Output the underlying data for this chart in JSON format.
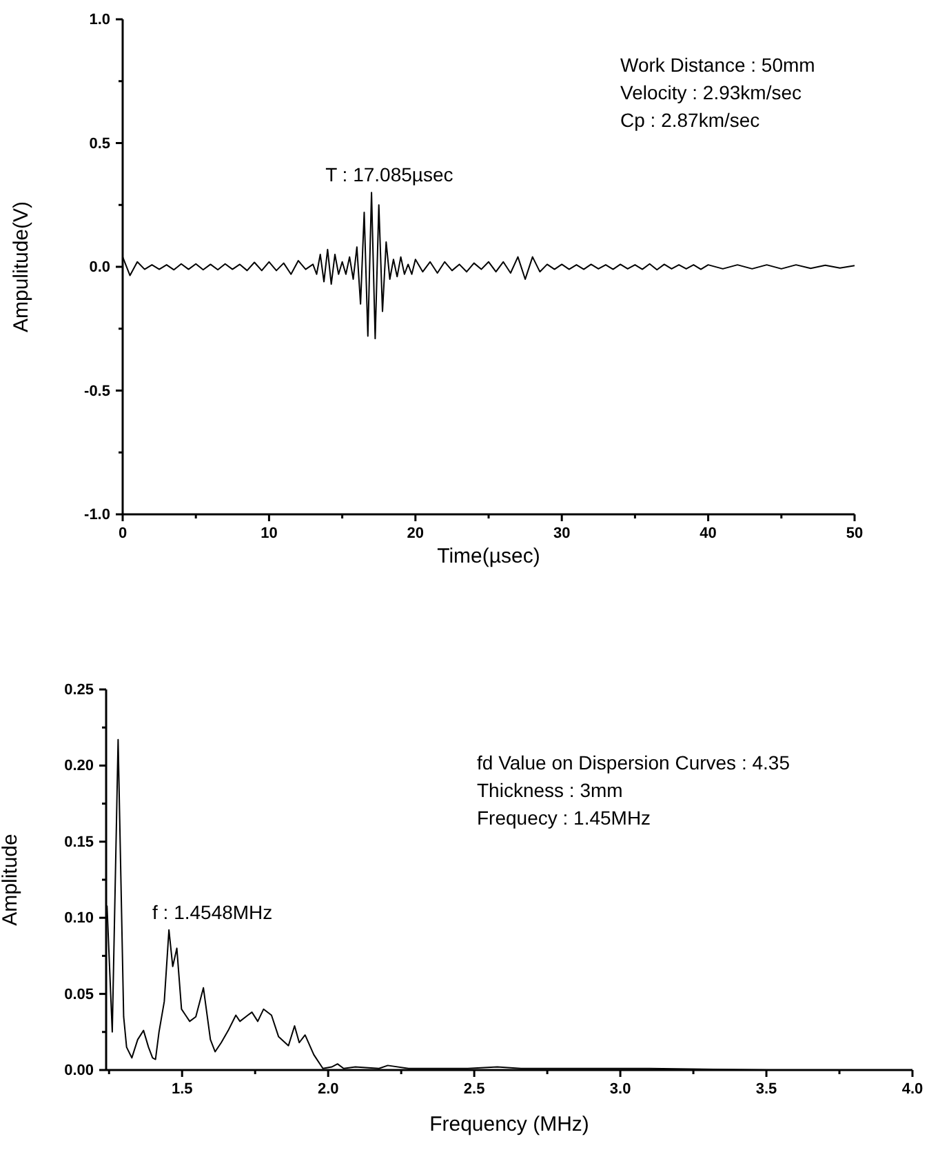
{
  "chart_data": [
    {
      "type": "line",
      "xlabel": "Time(µsec)",
      "ylabel": "Ampulitude(V)",
      "xlim": [
        0,
        50
      ],
      "ylim": [
        -1.0,
        1.0
      ],
      "xticks": [
        0,
        {
          "value": 5,
          "label": null
        },
        10,
        {
          "value": 15,
          "label": null
        },
        20,
        {
          "value": 25,
          "label": null
        },
        30,
        {
          "value": 35,
          "label": null
        },
        40,
        {
          "value": 45,
          "label": null
        },
        50
      ],
      "yticks": [
        {
          "value": -1,
          "label": "-1.0"
        },
        {
          "value": -0.75,
          "label": null
        },
        {
          "value": -0.5,
          "label": "-0.5"
        },
        {
          "value": -0.25,
          "label": null
        },
        {
          "value": 0,
          "label": "0.0"
        },
        {
          "value": 0.25,
          "label": null
        },
        {
          "value": 0.5,
          "label": "0.5"
        },
        {
          "value": 0.75,
          "label": null
        },
        {
          "value": 1,
          "label": "1.0"
        }
      ],
      "annotations": [
        {
          "text": "T : 17.085µsec",
          "x": 17.085,
          "y": 0.3
        },
        "Work Distance : 50mm",
        "Velocity : 2.93km/sec",
        "Cp : 2.87km/sec"
      ],
      "series": [
        {
          "color": "#000000",
          "x": [
            0,
            0.5,
            1,
            1.5,
            2,
            2.5,
            3,
            3.5,
            4,
            4.5,
            5,
            5.5,
            6,
            6.5,
            7,
            7.5,
            8,
            8.5,
            9,
            9.5,
            10,
            10.5,
            11,
            11.5,
            12,
            12.5,
            13,
            13.25,
            13.5,
            13.75,
            14,
            14.25,
            14.5,
            14.75,
            15,
            15.25,
            15.5,
            15.75,
            16,
            16.25,
            16.5,
            16.75,
            17,
            17.25,
            17.5,
            17.75,
            18,
            18.25,
            18.5,
            18.75,
            19,
            19.25,
            19.5,
            19.75,
            20,
            20.5,
            21,
            21.5,
            22,
            22.5,
            23,
            23.5,
            24,
            24.5,
            25,
            25.5,
            26,
            26.5,
            27,
            27.5,
            28,
            28.5,
            29,
            29.5,
            30,
            30.5,
            31,
            31.5,
            32,
            32.5,
            33,
            33.5,
            34,
            34.5,
            35,
            35.5,
            36,
            36.5,
            37,
            37.5,
            38,
            38.5,
            39,
            39.5,
            40,
            41,
            42,
            43,
            44,
            45,
            46,
            47,
            48,
            49,
            50
          ],
          "values": [
            0.04,
            -0.035,
            0.02,
            -0.01,
            0.008,
            -0.01,
            0.008,
            -0.012,
            0.012,
            -0.01,
            0.012,
            -0.012,
            0.01,
            -0.012,
            0.012,
            -0.01,
            0.01,
            -0.015,
            0.018,
            -0.015,
            0.02,
            -0.015,
            0.015,
            -0.03,
            0.025,
            -0.01,
            0.01,
            -0.03,
            0.05,
            -0.06,
            0.07,
            -0.07,
            0.05,
            -0.03,
            0.02,
            -0.03,
            0.04,
            -0.05,
            0.08,
            -0.15,
            0.22,
            -0.28,
            0.3,
            -0.29,
            0.25,
            -0.18,
            0.1,
            -0.05,
            0.03,
            -0.04,
            0.04,
            -0.03,
            0.01,
            -0.03,
            0.03,
            -0.02,
            0.02,
            -0.025,
            0.02,
            -0.015,
            0.01,
            -0.02,
            0.015,
            -0.01,
            0.02,
            -0.02,
            0.02,
            -0.025,
            0.04,
            -0.05,
            0.04,
            -0.02,
            0.01,
            -0.01,
            0.01,
            -0.01,
            0.008,
            -0.01,
            0.01,
            -0.008,
            0.008,
            -0.01,
            0.01,
            -0.008,
            0.008,
            -0.01,
            0.012,
            -0.012,
            0.01,
            -0.008,
            0.008,
            -0.008,
            0.008,
            -0.01,
            0.008,
            -0.008,
            0.008,
            -0.008,
            0.008,
            -0.008,
            0.008,
            -0.006,
            0.006,
            -0.005,
            0.005
          ]
        }
      ]
    },
    {
      "type": "line",
      "xlabel": "Frequency (MHz)",
      "ylabel": "Amplitude",
      "xlim": [
        1.24,
        4.0
      ],
      "ylim": [
        0,
        0.25
      ],
      "xticks": [
        {
          "value": 1.25,
          "label": null
        },
        1.5,
        {
          "value": 1.75,
          "label": null
        },
        {
          "value": 2,
          "label": "2.0"
        },
        {
          "value": 2.25,
          "label": null
        },
        2.5,
        {
          "value": 2.75,
          "label": null
        },
        {
          "value": 3,
          "label": "3.0"
        },
        {
          "value": 3.25,
          "label": null
        },
        3.5,
        {
          "value": 3.75,
          "label": null
        },
        {
          "value": 4,
          "label": "4.0"
        }
      ],
      "yticks": [
        {
          "value": 0,
          "label": "0.00"
        },
        {
          "value": 0.025,
          "label": null
        },
        {
          "value": 0.05,
          "label": "0.05"
        },
        {
          "value": 0.075,
          "label": null
        },
        {
          "value": 0.1,
          "label": "0.10"
        },
        {
          "value": 0.125,
          "label": null
        },
        {
          "value": 0.15,
          "label": "0.15"
        },
        {
          "value": 0.175,
          "label": null
        },
        {
          "value": 0.2,
          "label": "0.20"
        },
        {
          "value": 0.225,
          "label": null
        },
        {
          "value": 0.25,
          "label": "0.25"
        }
      ],
      "annotations": [
        {
          "text": "f : 1.4548MHz",
          "x": 1.4548,
          "y": 0.092
        },
        "fd Value on Dispersion Curves : 4.35",
        "Thickness : 3mm",
        "Frequecy : 1.45MHz"
      ],
      "series": [
        {
          "color": "#000000",
          "x": [
            1.243,
            1.261,
            1.281,
            1.3,
            1.31,
            1.328,
            1.348,
            1.368,
            1.385,
            1.399,
            1.409,
            1.421,
            1.439,
            1.455,
            1.468,
            1.482,
            1.498,
            1.512,
            1.526,
            1.547,
            1.573,
            1.597,
            1.613,
            1.634,
            1.658,
            1.684,
            1.698,
            1.725,
            1.739,
            1.759,
            1.779,
            1.806,
            1.83,
            1.864,
            1.885,
            1.901,
            1.921,
            1.951,
            1.982,
            2.012,
            2.032,
            2.053,
            2.093,
            2.174,
            2.204,
            2.275,
            2.377,
            2.478,
            2.579,
            2.66,
            2.8,
            3.1,
            3.51,
            4.0
          ],
          "values": [
            0.108,
            0.025,
            0.217,
            0.035,
            0.015,
            0.008,
            0.02,
            0.026,
            0.015,
            0.008,
            0.007,
            0.025,
            0.045,
            0.092,
            0.068,
            0.08,
            0.04,
            0.036,
            0.032,
            0.035,
            0.054,
            0.02,
            0.012,
            0.018,
            0.026,
            0.036,
            0.032,
            0.036,
            0.038,
            0.032,
            0.04,
            0.036,
            0.022,
            0.016,
            0.029,
            0.018,
            0.023,
            0.01,
            0.001,
            0.002,
            0.004,
            0.001,
            0.002,
            0.001,
            0.003,
            0.001,
            0.001,
            0.001,
            0.002,
            0.001,
            0.001,
            0.001,
            0,
            0
          ]
        }
      ]
    }
  ]
}
